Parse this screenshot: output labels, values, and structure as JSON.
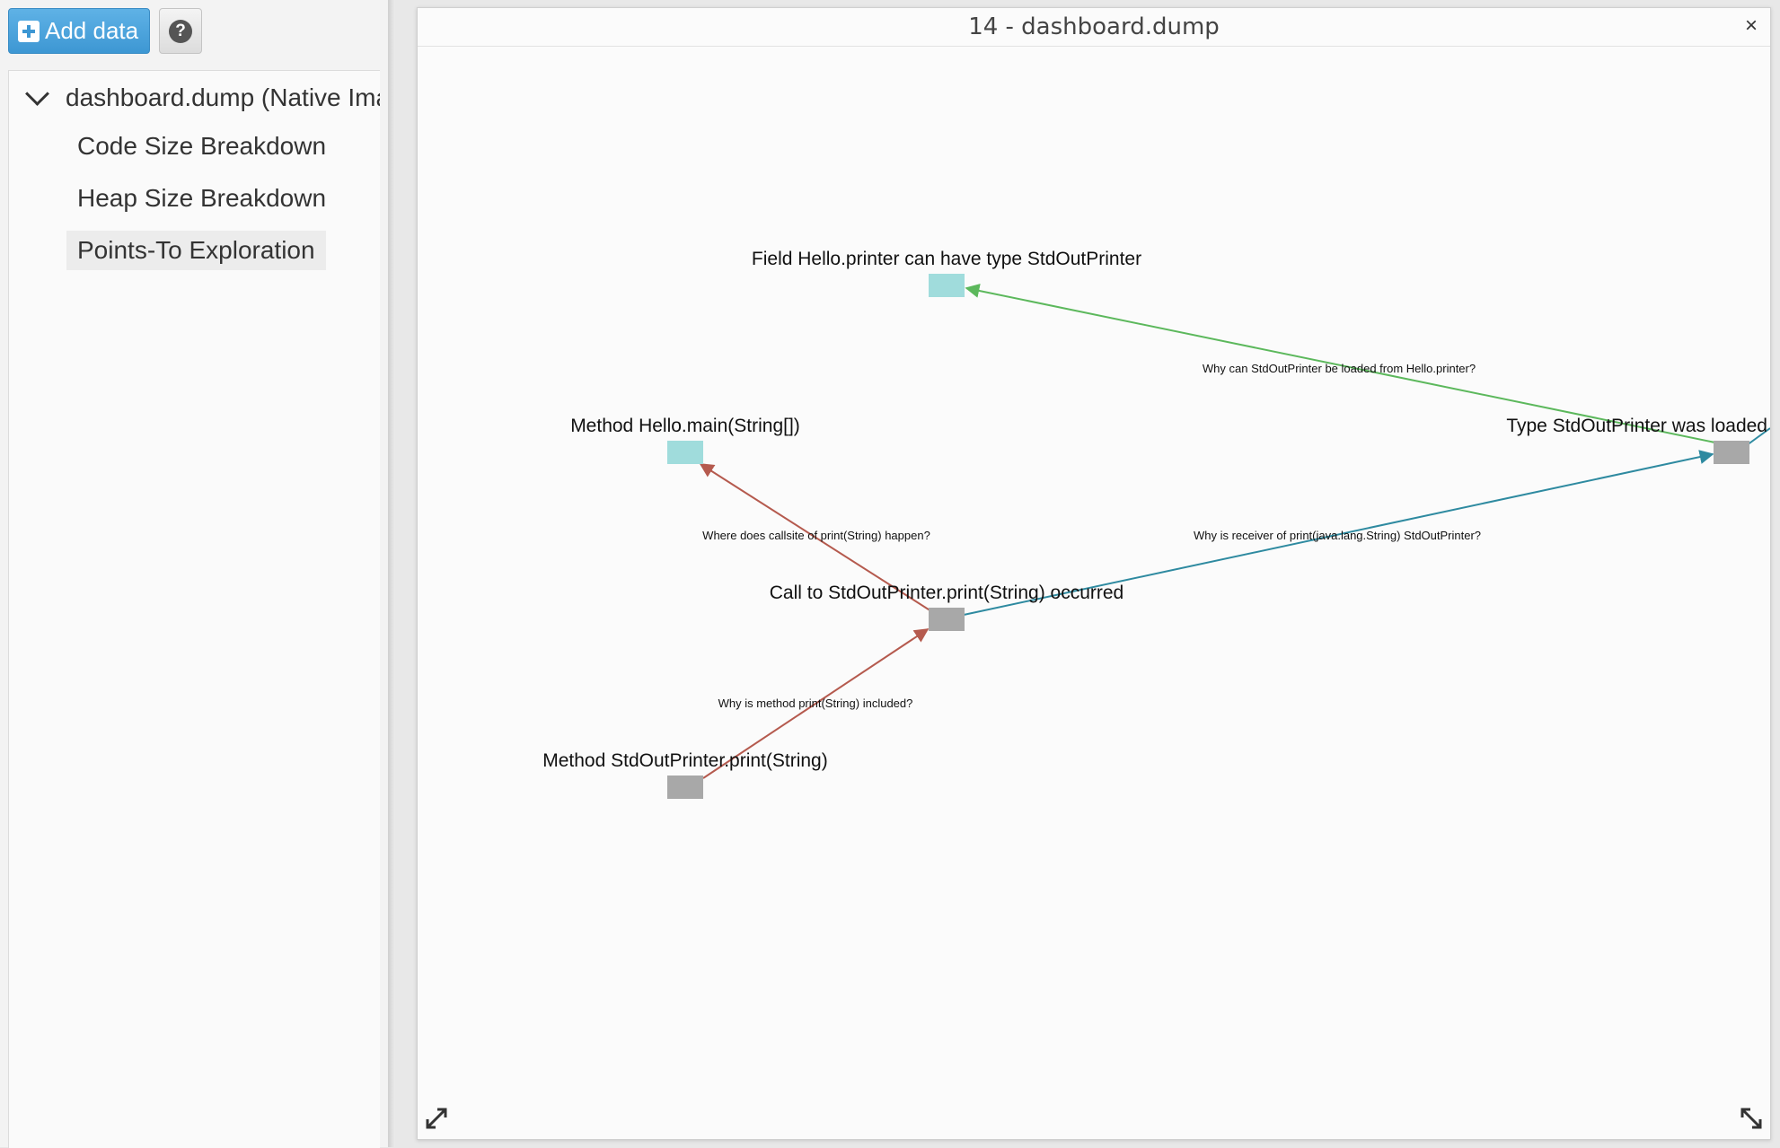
{
  "toolbar": {
    "add_data_label": "Add data",
    "help_label": "?"
  },
  "tree": {
    "root_label": "dashboard.dump (Native Image",
    "items": [
      {
        "label": "Code Size Breakdown",
        "selected": false
      },
      {
        "label": "Heap Size Breakdown",
        "selected": false
      },
      {
        "label": "Points-To Exploration",
        "selected": true
      }
    ]
  },
  "panel": {
    "title": "14 - dashboard.dump",
    "close_label": "×"
  },
  "graph": {
    "nodes": [
      {
        "id": "field",
        "label": "Field Hello.printer can have type StdOutPrinter",
        "color": "#a0dcdc"
      },
      {
        "id": "main",
        "label": "Method Hello.main(String[])",
        "color": "#a0dcdc"
      },
      {
        "id": "type",
        "label": "Type StdOutPrinter was loaded",
        "color": "#a8a8a8"
      },
      {
        "id": "call",
        "label": "Call to StdOutPrinter.print(String) occurred",
        "color": "#a8a8a8"
      },
      {
        "id": "method",
        "label": "Method StdOutPrinter.print(String)",
        "color": "#a8a8a8"
      }
    ],
    "edges": [
      {
        "from": "type",
        "to": "field",
        "label": "Why can StdOutPrinter be loaded from Hello.printer?",
        "color": "#5cb85c"
      },
      {
        "from": "call",
        "to": "main",
        "label": "Where does callsite of print(String) happen?",
        "color": "#b55a4e"
      },
      {
        "from": "call",
        "to": "type",
        "label": "Why is receiver of print(java.lang.String) StdOutPrinter?",
        "color": "#2e8aa0"
      },
      {
        "from": "method",
        "to": "call",
        "label": "Why is method print(String) included?",
        "color": "#b55a4e"
      }
    ]
  },
  "icons": {
    "expand": "expand-icon",
    "resize": "resize-icon"
  }
}
